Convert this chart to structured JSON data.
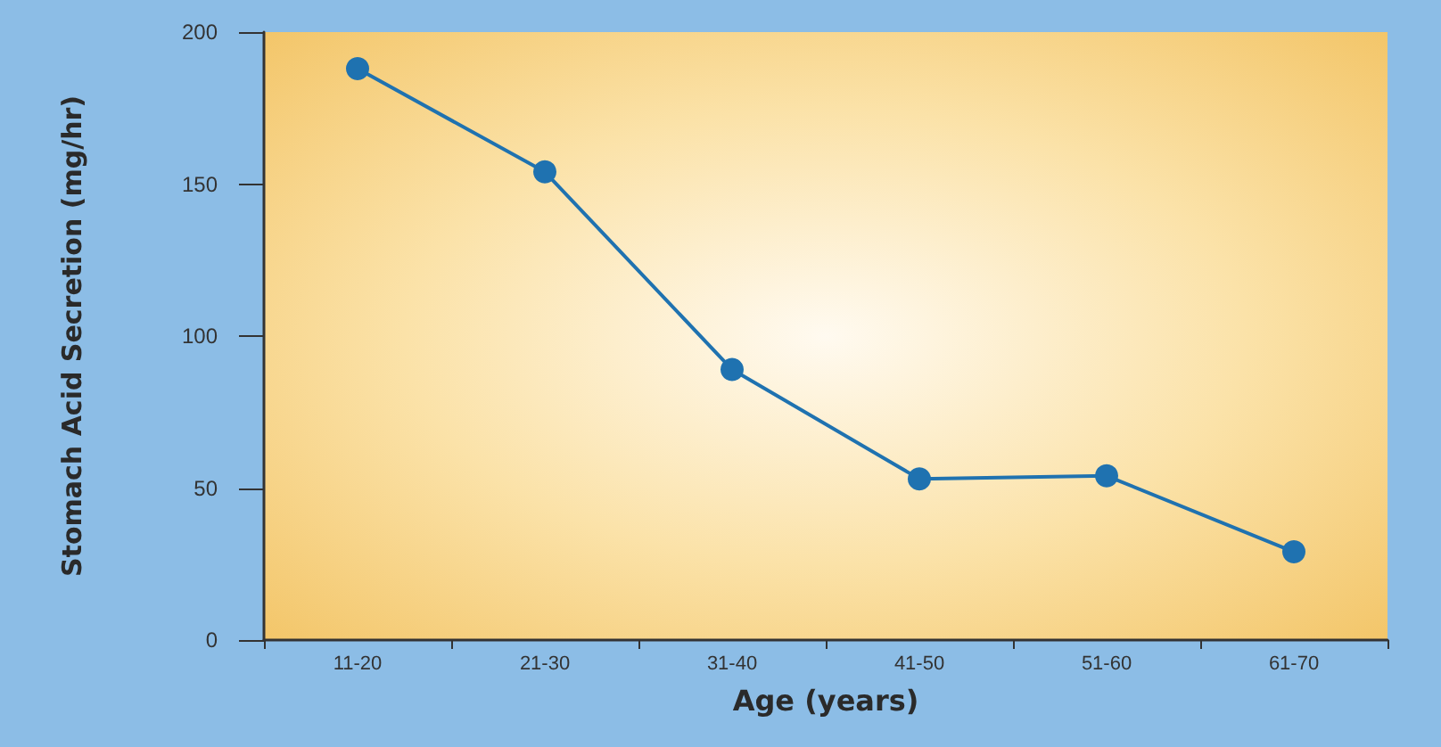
{
  "chart_data": {
    "type": "line",
    "xlabel": "Age (years)",
    "ylabel": "Stomach Acid Secretion (mg/hr)",
    "categories": [
      "11-20",
      "21-30",
      "31-40",
      "41-50",
      "51-60",
      "61-70"
    ],
    "series": [
      {
        "color": "#1f72b0",
        "values": [
          188,
          154,
          89,
          53,
          54,
          29
        ]
      }
    ],
    "ylim": [
      0,
      200
    ],
    "yticks": [
      0,
      50,
      100,
      150,
      200
    ],
    "grid": false,
    "marker": "circle",
    "line_style": "solid"
  }
}
